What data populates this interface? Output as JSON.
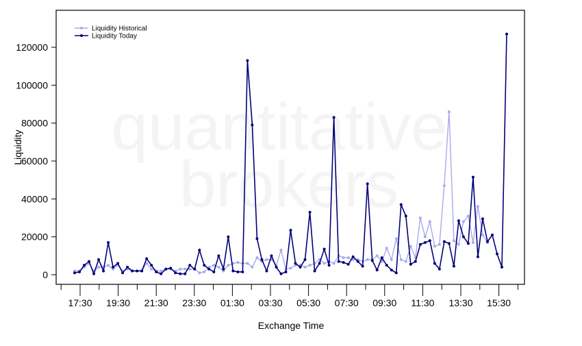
{
  "watermark": {
    "line1": "quantitative",
    "line2": "brokers"
  },
  "chart_data": {
    "type": "line",
    "xlabel": "Exchange Time",
    "ylabel": "Liquidity",
    "ylim": [
      -5000,
      140000
    ],
    "y_ticks": [
      0,
      20000,
      40000,
      60000,
      80000,
      100000,
      120000
    ],
    "x_tick_labels": [
      "17:30",
      "19:30",
      "21:30",
      "23:30",
      "01:30",
      "03:30",
      "05:30",
      "07:30",
      "09:30",
      "11:30",
      "13:30",
      "15:30"
    ],
    "legend_position": "top-left",
    "series": [
      {
        "name": "Liquidity Historical",
        "color": "#a8a8f0",
        "values": [
          2000,
          2000,
          4000,
          6000,
          2000,
          4000,
          4000,
          5000,
          3000,
          5000,
          2000,
          3000,
          2000,
          2000,
          2000,
          6000,
          3000,
          2000,
          2000,
          3000,
          3000,
          2000,
          3000,
          3000,
          3000,
          3000,
          1000,
          1500,
          4000,
          5000,
          4000,
          2000,
          5000,
          6000,
          6500,
          6000,
          6000,
          4000,
          9000,
          7000,
          8000,
          8000,
          5000,
          13000,
          3000,
          3500,
          5000,
          5000,
          4000,
          5000,
          6000,
          8000,
          6000,
          7000,
          6000,
          10000,
          9000,
          9000,
          8000,
          8000,
          7000,
          8000,
          8000,
          10000,
          7000,
          14000,
          8000,
          19000,
          8000,
          7000,
          15000,
          9000,
          30000,
          20000,
          28000,
          15000,
          16000,
          47000,
          86000,
          18000,
          16000,
          28000,
          31000,
          17000,
          36000,
          21000,
          17000
        ]
      },
      {
        "name": "Liquidity Today",
        "color": "#00007a",
        "values": [
          1000,
          1500,
          5000,
          7000,
          500,
          8000,
          2000,
          17000,
          4000,
          6000,
          1000,
          4000,
          2000,
          2000,
          2000,
          8500,
          5000,
          1500,
          500,
          3000,
          3500,
          1000,
          500,
          500,
          5000,
          3000,
          13000,
          5000,
          3000,
          1500,
          10000,
          3000,
          20000,
          2000,
          1500,
          1500,
          113000,
          79000,
          19000,
          8000,
          2000,
          10000,
          4000,
          500,
          1500,
          23500,
          6000,
          4000,
          8000,
          33000,
          2000,
          6000,
          13500,
          5000,
          83000,
          7000,
          6500,
          5500,
          9500,
          7000,
          4500,
          48000,
          7500,
          2500,
          9000,
          5000,
          2500,
          1000,
          37000,
          31000,
          5500,
          7000,
          16000,
          17000,
          18000,
          6000,
          3000,
          17500,
          16500,
          4500,
          28500,
          20000,
          16500,
          51500,
          9500,
          29500,
          17500,
          21000,
          11000,
          4000,
          127000
        ]
      }
    ]
  }
}
